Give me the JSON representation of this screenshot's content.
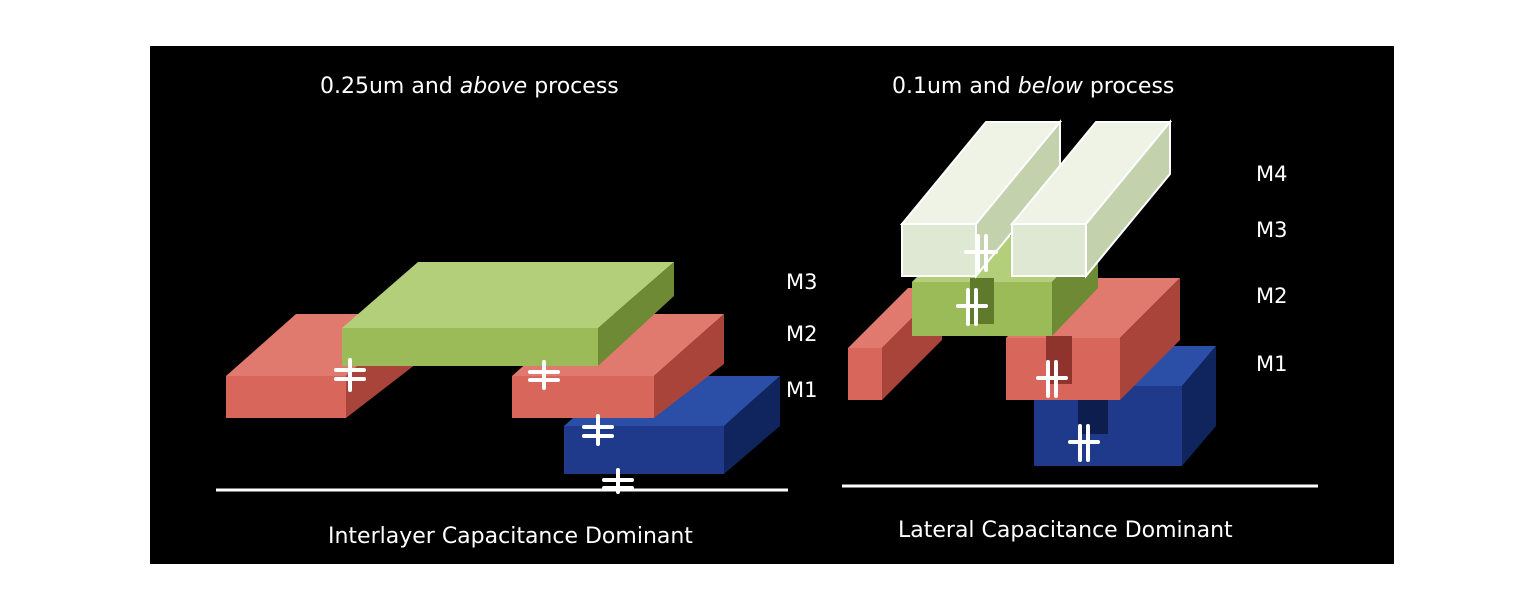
{
  "left_panel": {
    "title_prefix": "0.25um and ",
    "title_emphasis": "above",
    "title_suffix": " process",
    "caption": "Interlayer Capacitance Dominant",
    "layers": [
      "M3",
      "M2",
      "M1"
    ]
  },
  "right_panel": {
    "title_prefix": "0.1um and ",
    "title_emphasis": "below",
    "title_suffix": " process",
    "caption": "Lateral Capacitance Dominant",
    "layers": [
      "M4",
      "M3",
      "M2",
      "M1"
    ]
  },
  "colors": {
    "background": "#000000",
    "m1_blue": "#1f3a8a",
    "m2_red": "#d9665a",
    "m3_green": "#9bbb59",
    "m4_pale_green": "#dfe8d2",
    "line_white": "#ffffff"
  }
}
